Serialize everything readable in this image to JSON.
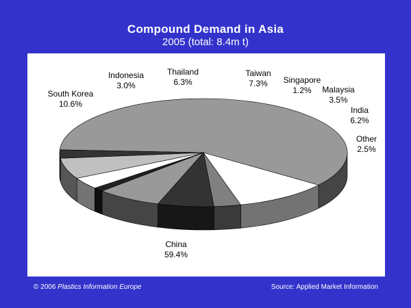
{
  "header": {
    "title": "Compound Demand in Asia",
    "subtitle": "2005 (total: 8.4m t)"
  },
  "footer": {
    "copyright_prefix": "© 2006 ",
    "copyright_owner": "Plastics Information Europe",
    "source": "Source: Applied Market Information"
  },
  "chart_data": {
    "type": "pie",
    "title": "Compound Demand in Asia",
    "subtitle": "2005 (total: 8.4m t)",
    "style": "3d",
    "slices": [
      {
        "label": "China",
        "pct_text": "59.4%",
        "value": 59.4,
        "color": "#999999"
      },
      {
        "label": "South Korea",
        "pct_text": "10.6%",
        "value": 10.6,
        "color": "#ffffff"
      },
      {
        "label": "Indonesia",
        "pct_text": "3.0%",
        "value": 3.0,
        "color": "#808080"
      },
      {
        "label": "Thailand",
        "pct_text": "6.3%",
        "value": 6.3,
        "color": "#333333"
      },
      {
        "label": "Taiwan",
        "pct_text": "7.3%",
        "value": 7.3,
        "color": "#999999"
      },
      {
        "label": "Singapore",
        "pct_text": "1.2%",
        "value": 1.2,
        "color": "#222222"
      },
      {
        "label": "Malaysia",
        "pct_text": "3.5%",
        "value": 3.5,
        "color": "#ffffff"
      },
      {
        "label": "India",
        "pct_text": "6.2%",
        "value": 6.2,
        "color": "#c0c0c0"
      },
      {
        "label": "Other",
        "pct_text": "2.5%",
        "value": 2.5,
        "color": "#333333"
      }
    ]
  }
}
